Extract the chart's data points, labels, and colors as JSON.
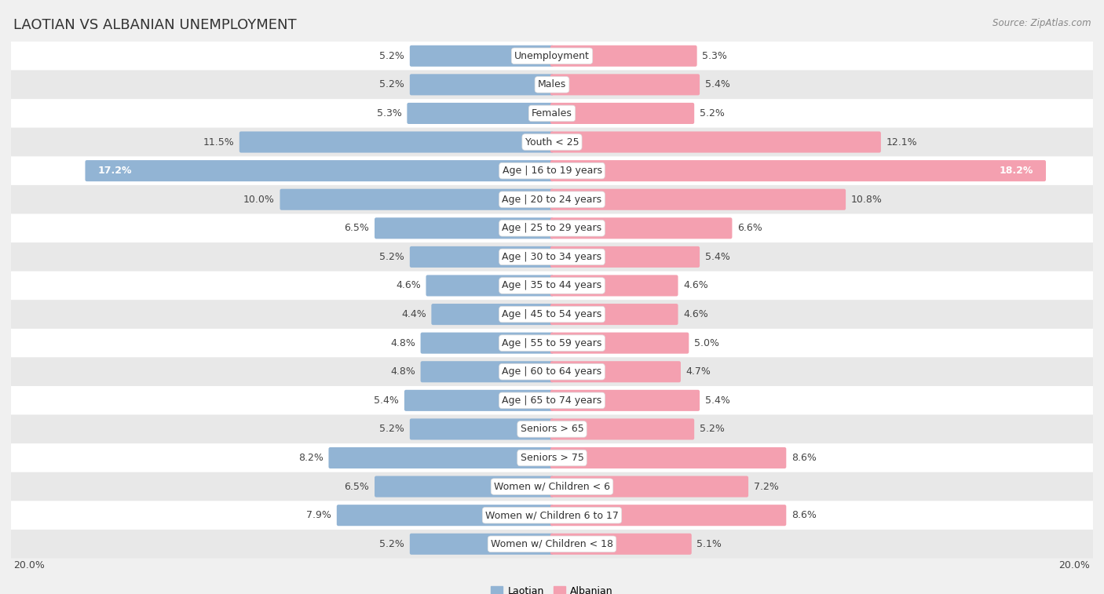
{
  "title": "LAOTIAN VS ALBANIAN UNEMPLOYMENT",
  "source": "Source: ZipAtlas.com",
  "categories": [
    "Unemployment",
    "Males",
    "Females",
    "Youth < 25",
    "Age | 16 to 19 years",
    "Age | 20 to 24 years",
    "Age | 25 to 29 years",
    "Age | 30 to 34 years",
    "Age | 35 to 44 years",
    "Age | 45 to 54 years",
    "Age | 55 to 59 years",
    "Age | 60 to 64 years",
    "Age | 65 to 74 years",
    "Seniors > 65",
    "Seniors > 75",
    "Women w/ Children < 6",
    "Women w/ Children 6 to 17",
    "Women w/ Children < 18"
  ],
  "laotian": [
    5.2,
    5.2,
    5.3,
    11.5,
    17.2,
    10.0,
    6.5,
    5.2,
    4.6,
    4.4,
    4.8,
    4.8,
    5.4,
    5.2,
    8.2,
    6.5,
    7.9,
    5.2
  ],
  "albanian": [
    5.3,
    5.4,
    5.2,
    12.1,
    18.2,
    10.8,
    6.6,
    5.4,
    4.6,
    4.6,
    5.0,
    4.7,
    5.4,
    5.2,
    8.6,
    7.2,
    8.6,
    5.1
  ],
  "laotian_color": "#92b4d4",
  "albanian_color": "#f4a0b0",
  "xlim": 20.0,
  "bg_color": "#f0f0f0",
  "row_color_light": "#ffffff",
  "row_color_dark": "#e8e8e8",
  "bar_height": 0.62,
  "label_fontsize": 9,
  "cat_fontsize": 9,
  "legend_laotian": "Laotian",
  "legend_albanian": "Albanian",
  "title_fontsize": 13,
  "source_fontsize": 8.5
}
